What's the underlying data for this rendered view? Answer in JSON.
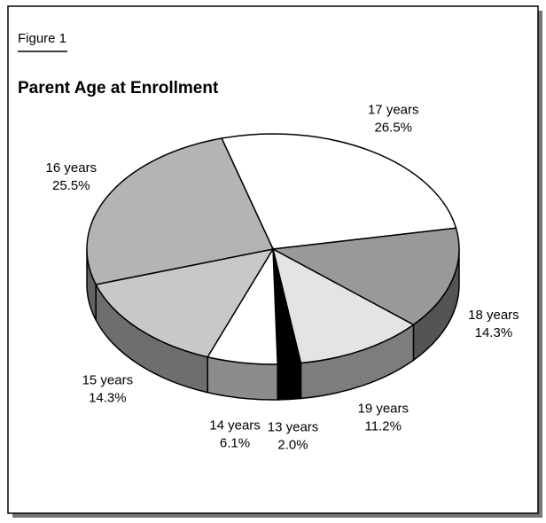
{
  "chart_data": {
    "type": "pie3d",
    "figure_label": "Figure 1",
    "title": "Parent Age at Enrollment",
    "categories": [
      "17 years",
      "18 years",
      "19 years",
      "13 years",
      "14 years",
      "15 years",
      "16 years"
    ],
    "values": [
      26.5,
      14.3,
      11.2,
      2.0,
      6.1,
      14.3,
      25.5
    ],
    "value_labels": [
      "26.5%",
      "14.3%",
      "11.2%",
      "2.0%",
      "6.1%",
      "14.3%",
      "25.5%"
    ],
    "colors": [
      "#ffffff",
      "#999999",
      "#e4e4e4",
      "#000000",
      "#ffffff",
      "#c8c8c8",
      "#b4b4b4"
    ]
  }
}
